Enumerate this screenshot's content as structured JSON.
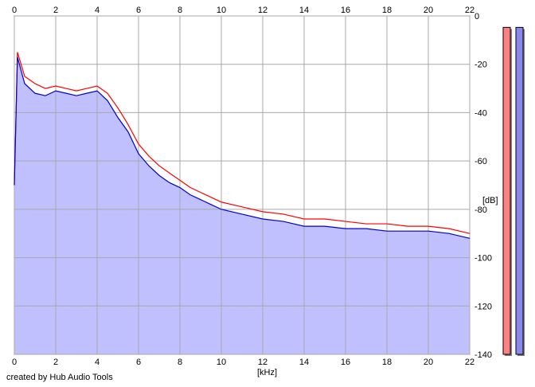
{
  "chart_data": {
    "type": "area",
    "title": "",
    "xlabel": "[kHz]",
    "ylabel": "[dB]",
    "x_ticks": [
      0,
      2,
      4,
      6,
      8,
      10,
      12,
      14,
      16,
      18,
      20,
      22
    ],
    "y_ticks": [
      0,
      -20,
      -40,
      -60,
      -80,
      -100,
      -120,
      -140
    ],
    "xlim": [
      0,
      22
    ],
    "ylim": [
      -140,
      0
    ],
    "grid": true,
    "series": [
      {
        "name": "",
        "color": "#ff0000",
        "style": "line",
        "x": [
          0,
          0.15,
          0.5,
          1,
          1.5,
          2,
          2.5,
          3,
          3.5,
          4,
          4.5,
          5,
          5.5,
          6,
          6.5,
          7,
          7.5,
          8,
          8.5,
          9,
          9.5,
          10,
          11,
          12,
          13,
          14,
          15,
          16,
          17,
          18,
          19,
          20,
          21,
          22
        ],
        "values": [
          -70,
          -15,
          -25,
          -28,
          -30,
          -29,
          -30,
          -31,
          -30,
          -29,
          -32,
          -38,
          -45,
          -53,
          -58,
          -62,
          -65,
          -68,
          -71,
          -73,
          -75,
          -77,
          -79,
          -81,
          -82,
          -84,
          -84,
          -85,
          -86,
          -86,
          -87,
          -87,
          -88,
          -90
        ]
      },
      {
        "name": "",
        "color": "#0000cc",
        "style": "line",
        "x": [
          0,
          0.15,
          0.5,
          1,
          1.5,
          2,
          2.5,
          3,
          3.5,
          4,
          4.5,
          5,
          5.5,
          6,
          6.5,
          7,
          7.5,
          8,
          8.5,
          9,
          9.5,
          10,
          11,
          12,
          13,
          14,
          15,
          16,
          17,
          18,
          19,
          20,
          21,
          22
        ],
        "values": [
          -70,
          -17,
          -28,
          -32,
          -33,
          -31,
          -32,
          -33,
          -32,
          -31,
          -35,
          -42,
          -48,
          -57,
          -62,
          -66,
          -69,
          -71,
          -74,
          -76,
          -78,
          -80,
          -82,
          -84,
          -85,
          -87,
          -87,
          -88,
          -88,
          -89,
          -89,
          -89,
          -90,
          -92
        ]
      }
    ],
    "level_meters": [
      {
        "color": "#ff8080",
        "level": 0.98
      },
      {
        "color": "#8888ee",
        "level": 0.98
      }
    ]
  },
  "colors": {
    "area_fill": "#c0c0ff",
    "plot_background": "#ffffff",
    "grid": "#a8a8a8"
  },
  "footer": {
    "credit": "created by Hub Audio Tools"
  }
}
